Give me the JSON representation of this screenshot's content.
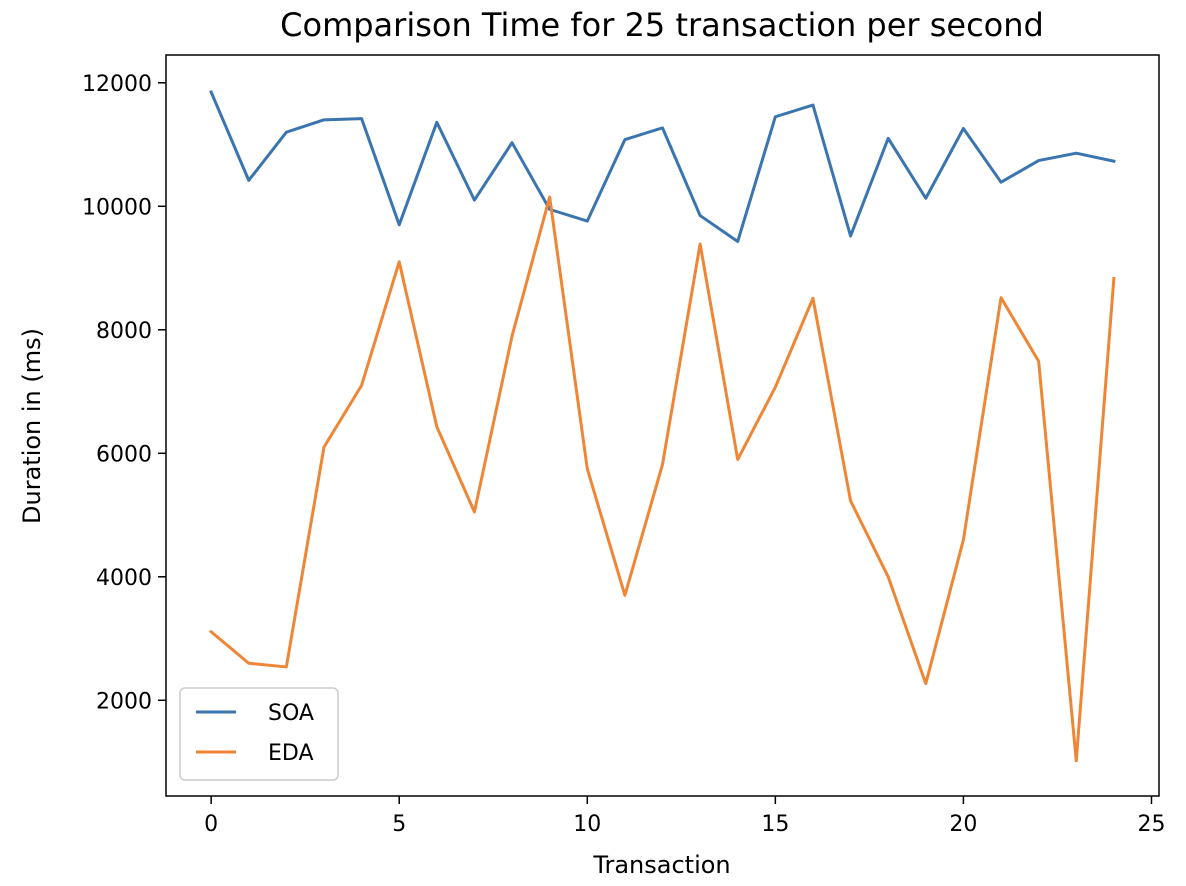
{
  "chart_data": {
    "type": "line",
    "title": "Comparison Time for 25 transaction per second",
    "xlabel": "Transaction",
    "ylabel": "Duration in (ms)",
    "x": [
      0,
      1,
      2,
      3,
      4,
      5,
      6,
      7,
      8,
      9,
      10,
      11,
      12,
      13,
      14,
      15,
      16,
      17,
      18,
      19,
      20,
      21,
      22,
      23,
      24
    ],
    "xlim": [
      -1.2,
      25.2
    ],
    "ylim": [
      450,
      12450
    ],
    "xticks": [
      0,
      5,
      10,
      15,
      20,
      25
    ],
    "yticks": [
      2000,
      4000,
      6000,
      8000,
      10000,
      12000
    ],
    "grid": false,
    "legend_position": "lower-left",
    "series": [
      {
        "name": "SOA",
        "color": "#3b75af",
        "values": [
          11850,
          10420,
          11200,
          11400,
          11420,
          9700,
          11360,
          10100,
          11030,
          9950,
          9760,
          11080,
          11270,
          9850,
          9430,
          11450,
          11640,
          9520,
          11100,
          10130,
          11260,
          10390,
          10740,
          10860,
          10730
        ]
      },
      {
        "name": "EDA",
        "color": "#ef8636",
        "values": [
          3110,
          2600,
          2540,
          6100,
          7100,
          9100,
          6430,
          5050,
          7900,
          10150,
          5750,
          3700,
          5820,
          9390,
          5900,
          7070,
          8510,
          5230,
          4000,
          2270,
          4600,
          8520,
          7490,
          1020,
          8830
        ]
      }
    ]
  }
}
